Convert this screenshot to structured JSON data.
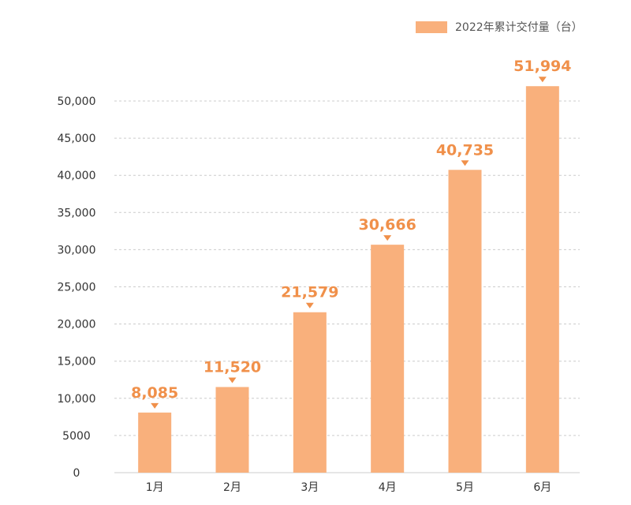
{
  "chart_data": {
    "type": "bar",
    "categories": [
      "1月",
      "2月",
      "3月",
      "4月",
      "5月",
      "6月"
    ],
    "series": [
      {
        "name": "2022年累计交付量（台）",
        "values": [
          8085,
          11520,
          21579,
          30666,
          40735,
          51994
        ]
      }
    ],
    "data_labels": [
      "8,085",
      "11,520",
      "21,579",
      "30,666",
      "40,735",
      "51,994"
    ],
    "yticks": [
      0,
      5000,
      10000,
      15000,
      20000,
      25000,
      30000,
      35000,
      40000,
      45000,
      50000
    ],
    "ytick_labels": [
      "0",
      "5000",
      "10,000",
      "15,000",
      "20,000",
      "25,000",
      "30,000",
      "35,000",
      "40,000",
      "45,000",
      "50,000"
    ],
    "ylim": [
      0,
      50000
    ],
    "grid": true,
    "legend_position": "top-right",
    "colors": {
      "bar": "#f9b07c",
      "label": "#f0904a",
      "grid": "#cccccc"
    }
  }
}
